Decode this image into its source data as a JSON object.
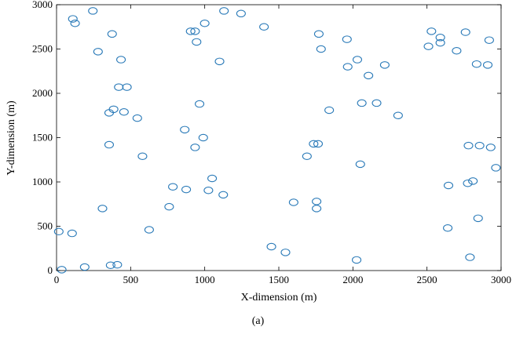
{
  "caption": "(a)",
  "chart_data": {
    "type": "scatter",
    "xlabel": "X-dimension (m)",
    "ylabel": "Y-dimension (m)",
    "xlim": [
      0,
      3000
    ],
    "ylim": [
      0,
      3000
    ],
    "xticks": [
      0,
      500,
      1000,
      1500,
      2000,
      2500,
      3000
    ],
    "yticks": [
      0,
      500,
      1000,
      1500,
      2000,
      2500,
      3000
    ],
    "grid": false,
    "legend": "none",
    "marker_color": "#2a7ab8",
    "marker": "open-circle",
    "points": [
      [
        245,
        2930
      ],
      [
        110,
        2840
      ],
      [
        125,
        2790
      ],
      [
        375,
        2670
      ],
      [
        280,
        2470
      ],
      [
        435,
        2380
      ],
      [
        420,
        2070
      ],
      [
        475,
        2070
      ],
      [
        355,
        1780
      ],
      [
        385,
        1820
      ],
      [
        455,
        1790
      ],
      [
        545,
        1720
      ],
      [
        355,
        1420
      ],
      [
        580,
        1290
      ],
      [
        15,
        440
      ],
      [
        105,
        420
      ],
      [
        310,
        700
      ],
      [
        190,
        40
      ],
      [
        365,
        60
      ],
      [
        410,
        65
      ],
      [
        35,
        10
      ],
      [
        625,
        460
      ],
      [
        760,
        720
      ],
      [
        785,
        945
      ],
      [
        875,
        915
      ],
      [
        865,
        1590
      ],
      [
        935,
        1390
      ],
      [
        990,
        1500
      ],
      [
        965,
        1880
      ],
      [
        1025,
        905
      ],
      [
        1050,
        1040
      ],
      [
        1125,
        855
      ],
      [
        1100,
        2360
      ],
      [
        905,
        2700
      ],
      [
        935,
        2700
      ],
      [
        945,
        2580
      ],
      [
        1000,
        2790
      ],
      [
        1130,
        2930
      ],
      [
        1245,
        2900
      ],
      [
        1400,
        2750
      ],
      [
        1450,
        270
      ],
      [
        1545,
        205
      ],
      [
        1600,
        770
      ],
      [
        1690,
        1290
      ],
      [
        1735,
        1430
      ],
      [
        1765,
        1430
      ],
      [
        1755,
        780
      ],
      [
        1755,
        700
      ],
      [
        1770,
        2670
      ],
      [
        1785,
        2500
      ],
      [
        1840,
        1810
      ],
      [
        1960,
        2610
      ],
      [
        1965,
        2300
      ],
      [
        2030,
        2380
      ],
      [
        2105,
        2200
      ],
      [
        2060,
        1890
      ],
      [
        2160,
        1890
      ],
      [
        2050,
        1200
      ],
      [
        2025,
        120
      ],
      [
        2215,
        2320
      ],
      [
        2305,
        1750
      ],
      [
        2530,
        2700
      ],
      [
        2510,
        2530
      ],
      [
        2590,
        2630
      ],
      [
        2590,
        2570
      ],
      [
        2700,
        2480
      ],
      [
        2760,
        2690
      ],
      [
        2835,
        2330
      ],
      [
        2910,
        2320
      ],
      [
        2920,
        2600
      ],
      [
        2780,
        1410
      ],
      [
        2855,
        1410
      ],
      [
        2930,
        1390
      ],
      [
        2965,
        1160
      ],
      [
        2775,
        985
      ],
      [
        2810,
        1010
      ],
      [
        2845,
        590
      ],
      [
        2645,
        960
      ],
      [
        2640,
        480
      ],
      [
        2790,
        150
      ]
    ]
  }
}
